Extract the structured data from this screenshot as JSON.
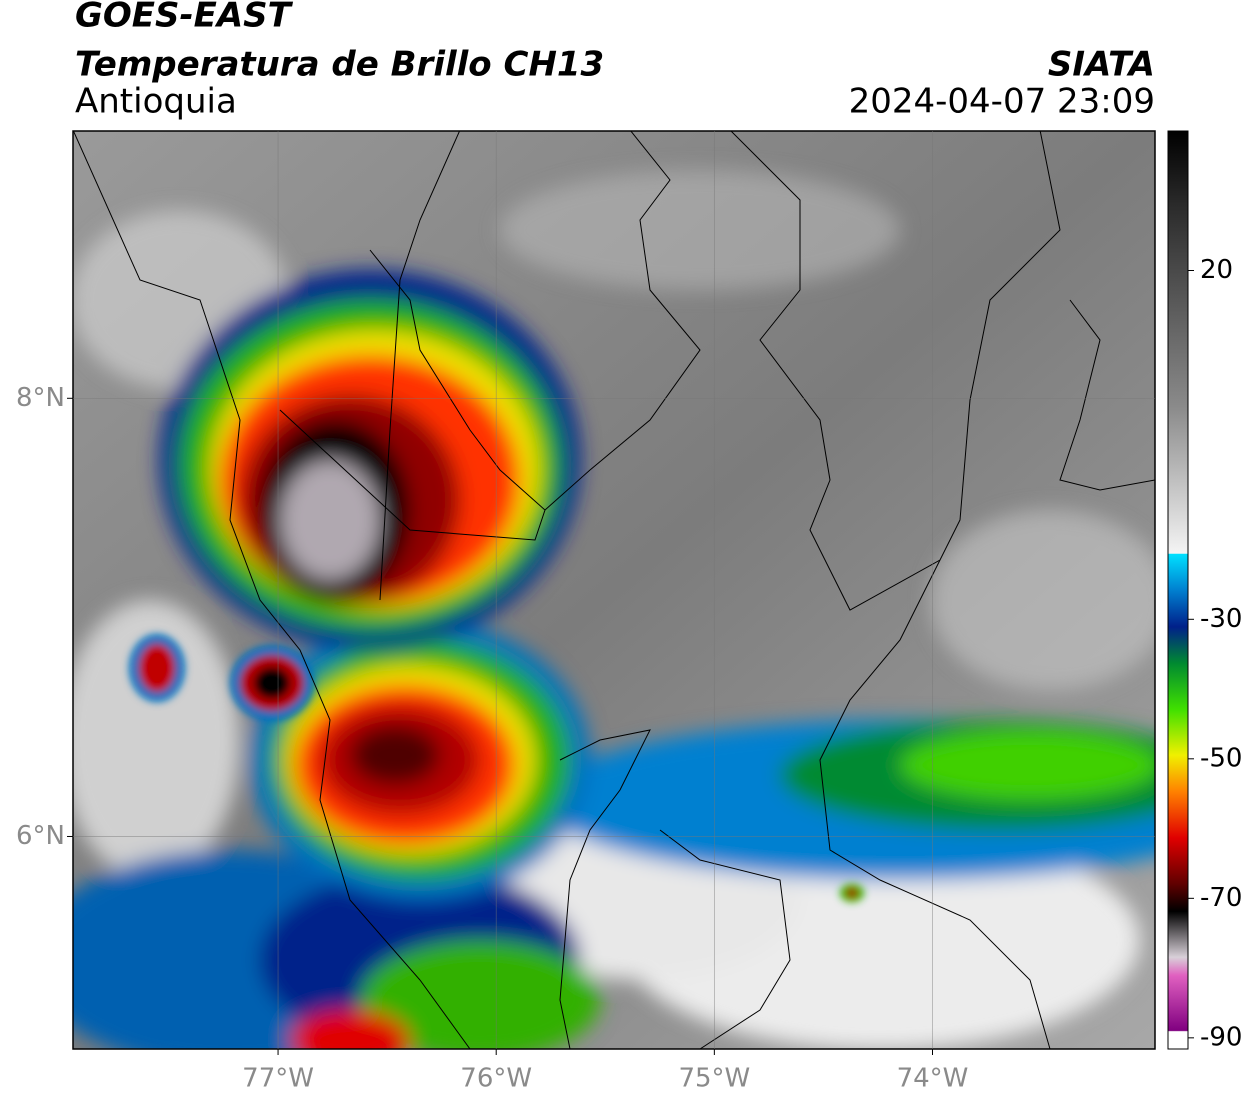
{
  "header": {
    "title": "GOES-EAST",
    "subtitle": "Temperatura de Brillo CH13",
    "region": "Antioquia",
    "source": "SIATA",
    "datetime": "2024-04-07 23:09"
  },
  "map": {
    "xlim": [
      -77.94,
      -72.98
    ],
    "ylim": [
      5.03,
      9.22
    ],
    "xticks": [
      {
        "value": -77,
        "label": "77°W"
      },
      {
        "value": -76,
        "label": "76°W"
      },
      {
        "value": -75,
        "label": "75°W"
      },
      {
        "value": -74,
        "label": "74°W"
      }
    ],
    "yticks": [
      {
        "value": 8,
        "label": "8°N"
      },
      {
        "value": 6,
        "label": "6°N"
      }
    ],
    "grid": true
  },
  "colorbar": {
    "lim": [
      -91.6,
      40
    ],
    "ticks": [
      20,
      -30,
      -50,
      -70,
      -90
    ]
  }
}
